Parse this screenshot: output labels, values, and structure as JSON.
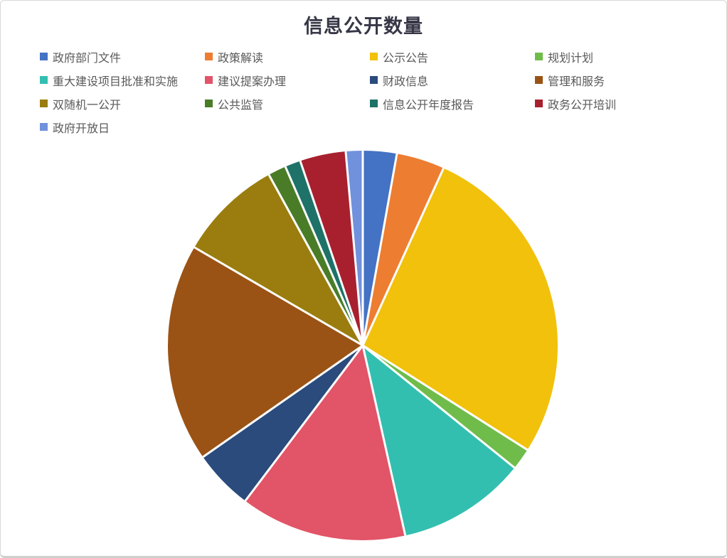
{
  "page": {
    "background_color": "#FFFFFF",
    "border_color": "#D8D8D8",
    "title_color": "#363646",
    "legend_text_color": "#595959",
    "slice_separator_color": "#FFFFFF"
  },
  "chart_data": {
    "type": "pie",
    "title": "信息公开数量",
    "legend_position": "top",
    "clockwise": true,
    "start_angle_deg": 0,
    "values_estimated_from_angles": true,
    "categories": [
      "政府部门文件",
      "政策解读",
      "公示公告",
      "规划计划",
      "重大建设项目批准和实施",
      "建议提案办理",
      "财政信息",
      "管理和服务",
      "双随机一公开",
      "公共监管",
      "信息公开年度报告",
      "政务公开培训",
      "政府开放日"
    ],
    "values": [
      2.8,
      4.0,
      27.2,
      1.8,
      10.7,
      13.8,
      5.0,
      18.1,
      8.6,
      1.5,
      1.3,
      3.8,
      1.4
    ],
    "unit": "percent-share",
    "colors": [
      "#4472C4",
      "#ED7D31",
      "#F1C10B",
      "#6FBC4A",
      "#33BFB0",
      "#E25467",
      "#2A4B7C",
      "#9A5315",
      "#9A7D0E",
      "#4A7C28",
      "#1E7268",
      "#A8202E",
      "#7191DC"
    ]
  }
}
